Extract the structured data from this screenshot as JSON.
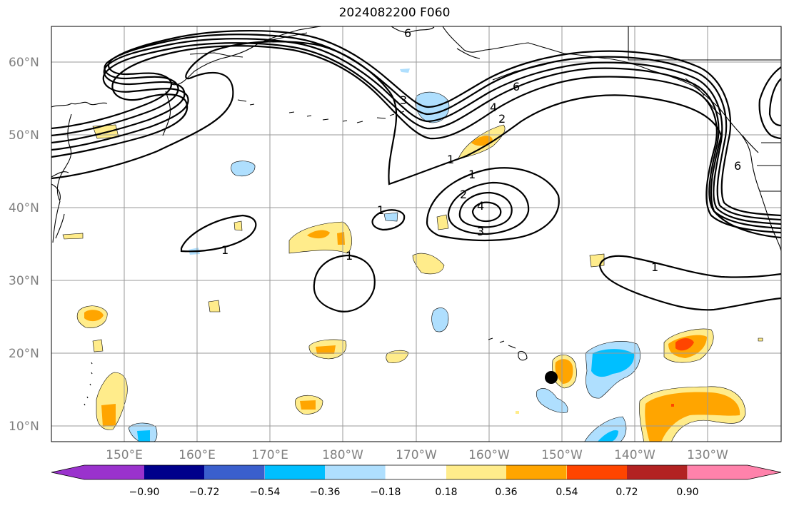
{
  "title": "2024082200 F060",
  "lat_labels": [
    "60°N",
    "50°N",
    "40°N",
    "30°N",
    "20°N",
    "10°N"
  ],
  "lon_labels": [
    "150°E",
    "160°E",
    "170°E",
    "180°W",
    "170°W",
    "160°W",
    "150°W",
    "140°W",
    "130°W"
  ],
  "contour_labels": [
    "1",
    "1",
    "1",
    "1",
    "1",
    "2",
    "2",
    "3",
    "3",
    "4",
    "4",
    "6",
    "6",
    "6",
    "1"
  ],
  "colorbar": {
    "colors": [
      "#9a32cd",
      "#00008b",
      "#3a5fcd",
      "#00bfff",
      "#afdffe",
      "#ffffff",
      "#ffec8b",
      "#ffa500",
      "#ff4500",
      "#b22222",
      "#ff82ab"
    ],
    "tick_labels": [
      "−0.90",
      "−0.72",
      "−0.54",
      "−0.36",
      "−0.18",
      "0.18",
      "0.36",
      "0.54",
      "0.72",
      "0.90"
    ]
  },
  "marker": {
    "name": "storm-position-marker",
    "lat": 16.9,
    "lon": -151.5
  }
}
